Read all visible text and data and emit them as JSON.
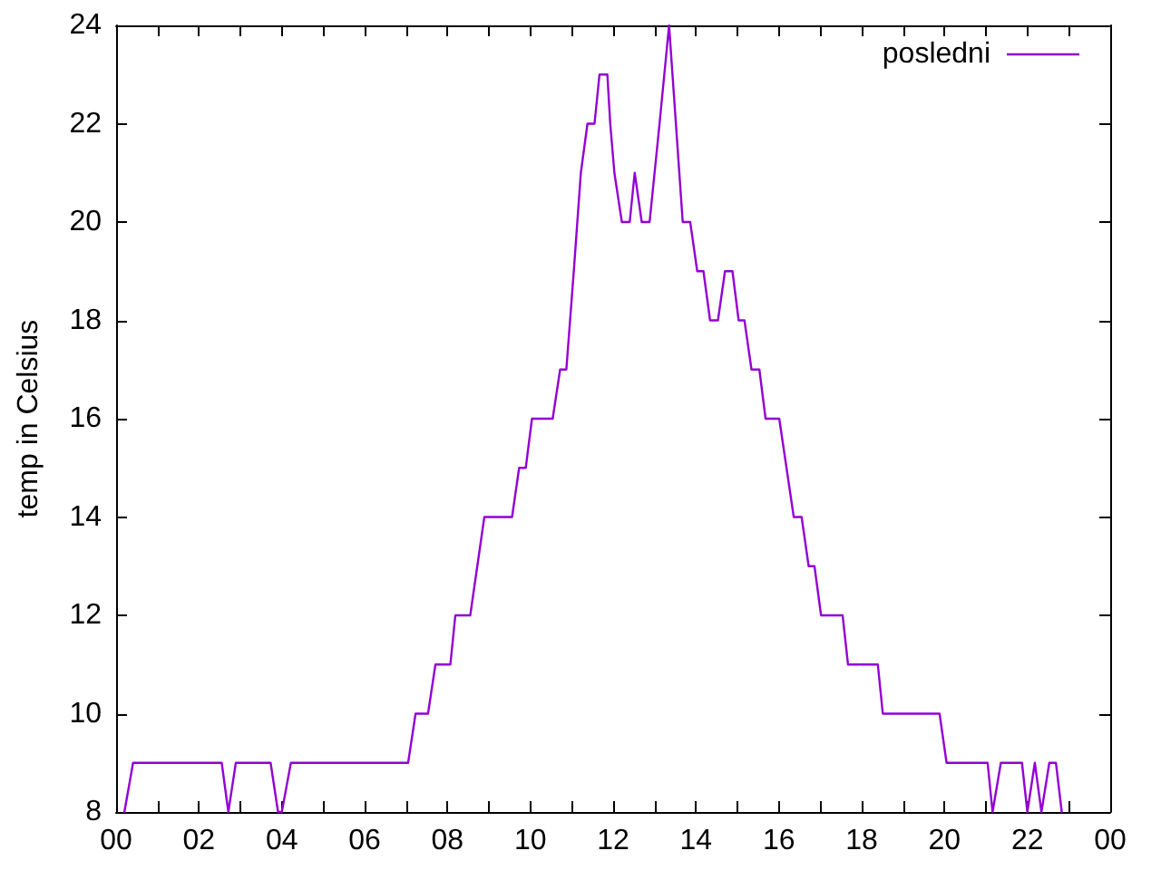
{
  "chart_data": {
    "type": "line",
    "ylabel": "temp in Celsius",
    "x": [
      0.2,
      0.41,
      2.55,
      2.71,
      2.89,
      3.73,
      3.91,
      4.0,
      4.22,
      7.05,
      7.23,
      7.53,
      7.71,
      8.07,
      8.19,
      8.55,
      8.89,
      9.56,
      9.73,
      9.89,
      10.04,
      10.54,
      10.72,
      10.87,
      11.05,
      11.22,
      11.38,
      11.55,
      11.67,
      11.86,
      11.93,
      12.03,
      12.21,
      12.4,
      12.52,
      12.69,
      12.88,
      13.12,
      13.35,
      13.68,
      13.86,
      14.03,
      14.18,
      14.34,
      14.53,
      14.7,
      14.88,
      15.03,
      15.17,
      15.34,
      15.53,
      15.68,
      16.01,
      16.36,
      16.55,
      16.72,
      16.86,
      17.02,
      17.54,
      17.67,
      18.39,
      18.51,
      19.88,
      20.05,
      21.04,
      21.16,
      21.36,
      21.87,
      22.0,
      22.18,
      22.34,
      22.53,
      22.69,
      22.83
    ],
    "series": [
      {
        "name": "posledni",
        "color": "#9400d3",
        "values": [
          8,
          9,
          9,
          8,
          9,
          9,
          8,
          8,
          9,
          9,
          10,
          10,
          11,
          11,
          12,
          12,
          14,
          14,
          15,
          15,
          16,
          16,
          17,
          17,
          19,
          21,
          22,
          22,
          23,
          23,
          22,
          21,
          20,
          20,
          21,
          20,
          20,
          22,
          24,
          20,
          20,
          19,
          19,
          18,
          18,
          19,
          19,
          18,
          18,
          17,
          17,
          16,
          16,
          14,
          14,
          13,
          13,
          12,
          12,
          11,
          11,
          10,
          10,
          9,
          9,
          8,
          9,
          9,
          8,
          9,
          8,
          9,
          9,
          8
        ]
      }
    ],
    "xlim": [
      0,
      24
    ],
    "xticks": [
      {
        "value": 0,
        "label": "00"
      },
      {
        "value": 1,
        "label": null
      },
      {
        "value": 2,
        "label": "02"
      },
      {
        "value": 3,
        "label": null
      },
      {
        "value": 4,
        "label": "04"
      },
      {
        "value": 5,
        "label": null
      },
      {
        "value": 6,
        "label": "06"
      },
      {
        "value": 7,
        "label": null
      },
      {
        "value": 8,
        "label": "08"
      },
      {
        "value": 9,
        "label": null
      },
      {
        "value": 10,
        "label": "10"
      },
      {
        "value": 11,
        "label": null
      },
      {
        "value": 12,
        "label": "12"
      },
      {
        "value": 13,
        "label": null
      },
      {
        "value": 14,
        "label": "14"
      },
      {
        "value": 15,
        "label": null
      },
      {
        "value": 16,
        "label": "16"
      },
      {
        "value": 17,
        "label": null
      },
      {
        "value": 18,
        "label": "18"
      },
      {
        "value": 19,
        "label": null
      },
      {
        "value": 20,
        "label": "20"
      },
      {
        "value": 21,
        "label": null
      },
      {
        "value": 22,
        "label": "22"
      },
      {
        "value": 23,
        "label": null
      },
      {
        "value": 24,
        "label": "00"
      }
    ],
    "ylim": [
      8,
      24
    ],
    "yticks": [
      8,
      10,
      12,
      14,
      16,
      18,
      20,
      22,
      24
    ],
    "legend": "top right",
    "marker": "none",
    "line_style": "solid"
  }
}
